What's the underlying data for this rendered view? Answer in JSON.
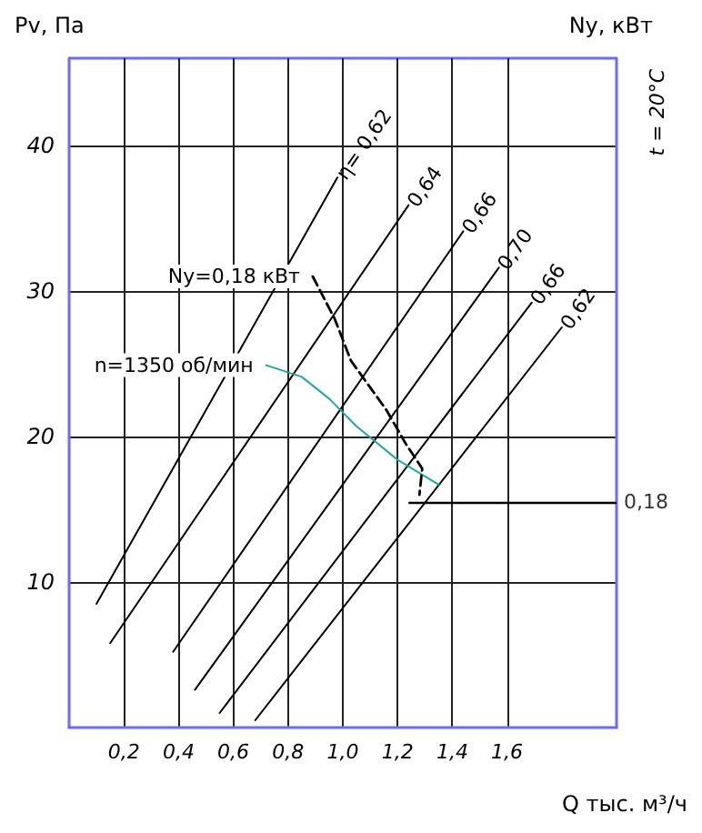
{
  "chart_data": {
    "type": "line",
    "xlabel": "Q тыс. м³/ч",
    "ylabel": "Pv, Па",
    "y2label": "Ny, кВт",
    "annotations": [
      "t = 20°C",
      {
        "text": "0,18",
        "x": 2.0,
        "y": 15.5
      }
    ],
    "xlim": [
      0,
      2.0
    ],
    "xticks": [
      {
        "value": 0.2,
        "label": "0,2"
      },
      {
        "value": 0.4,
        "label": "0,4"
      },
      {
        "value": 0.6,
        "label": "0,6"
      },
      {
        "value": 0.8,
        "label": "0,8"
      },
      {
        "value": 1.0,
        "label": "1,0"
      },
      {
        "value": 1.2,
        "label": "1,2"
      },
      {
        "value": 1.4,
        "label": "1,4"
      },
      {
        "value": 1.6,
        "label": "1,6"
      }
    ],
    "ylim": [
      0,
      46
    ],
    "yticks": [
      10,
      20,
      30,
      40
    ],
    "grid": true,
    "marker": "none",
    "ref_lines": [
      {
        "axis": "y",
        "value": 15.5
      }
    ],
    "series": [
      {
        "name": "η= 0,62",
        "color": "#000000",
        "x": [
          0.1,
          0.98
        ],
        "values": [
          8.5,
          37.8
        ]
      },
      {
        "name": "0,64",
        "color": "#000000",
        "x": [
          0.15,
          1.24
        ],
        "values": [
          5.8,
          35.9
        ]
      },
      {
        "name": "0,66",
        "color": "#000000",
        "x": [
          0.38,
          1.44
        ],
        "values": [
          5.2,
          34.1
        ]
      },
      {
        "name": "0,70",
        "color": "#000000",
        "x": [
          0.46,
          1.57
        ],
        "values": [
          2.6,
          31.6
        ]
      },
      {
        "name": "0,66",
        "color": "#000000",
        "x": [
          0.55,
          1.69
        ],
        "values": [
          1.0,
          29.2
        ]
      },
      {
        "name": "0,62",
        "color": "#000000",
        "x": [
          0.68,
          1.8
        ],
        "values": [
          0.5,
          27.5
        ]
      },
      {
        "name": "n=1350 об/мин",
        "color": "#26a69a",
        "x": [
          0.72,
          0.85,
          0.95,
          1.05,
          1.2,
          1.35
        ],
        "values": [
          24.9,
          24.1,
          22.6,
          20.7,
          18.4,
          16.7
        ]
      },
      {
        "name": "Ny=0,18 кВт",
        "color": "#000000",
        "line_style": "dashed",
        "x": [
          0.89,
          0.97,
          1.03,
          1.16,
          1.23,
          1.29,
          1.28
        ],
        "values": [
          31.0,
          28.1,
          25.2,
          21.8,
          19.5,
          17.8,
          16.0
        ]
      }
    ]
  }
}
